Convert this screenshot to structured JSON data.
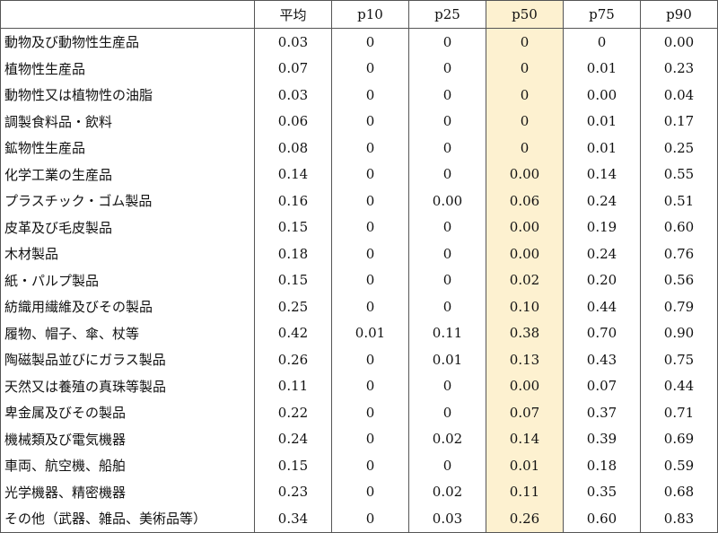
{
  "table": {
    "highlight_color": "#fdf1d0",
    "highlight_column": "p50",
    "headers": [
      "",
      "平均",
      "p10",
      "p25",
      "p50",
      "p75",
      "p90"
    ],
    "rows": [
      {
        "label": "動物及び動物性生産品",
        "values": [
          "0.03",
          "0",
          "0",
          "0",
          "0",
          "0.00"
        ]
      },
      {
        "label": "植物性生産品",
        "values": [
          "0.07",
          "0",
          "0",
          "0",
          "0.01",
          "0.23"
        ]
      },
      {
        "label": "動物性又は植物性の油脂",
        "values": [
          "0.03",
          "0",
          "0",
          "0",
          "0.00",
          "0.04"
        ]
      },
      {
        "label": "調製食料品・飲料",
        "values": [
          "0.06",
          "0",
          "0",
          "0",
          "0.01",
          "0.17"
        ]
      },
      {
        "label": "鉱物性生産品",
        "values": [
          "0.08",
          "0",
          "0",
          "0",
          "0.01",
          "0.25"
        ]
      },
      {
        "label": "化学工業の生産品",
        "values": [
          "0.14",
          "0",
          "0",
          "0.00",
          "0.14",
          "0.55"
        ]
      },
      {
        "label": "プラスチック・ゴム製品",
        "values": [
          "0.16",
          "0",
          "0.00",
          "0.06",
          "0.24",
          "0.51"
        ]
      },
      {
        "label": "皮革及び毛皮製品",
        "values": [
          "0.15",
          "0",
          "0",
          "0.00",
          "0.19",
          "0.60"
        ]
      },
      {
        "label": "木材製品",
        "values": [
          "0.18",
          "0",
          "0",
          "0.00",
          "0.24",
          "0.76"
        ]
      },
      {
        "label": "紙・パルプ製品",
        "values": [
          "0.15",
          "0",
          "0",
          "0.02",
          "0.20",
          "0.56"
        ]
      },
      {
        "label": "紡織用繊維及びその製品",
        "values": [
          "0.25",
          "0",
          "0",
          "0.10",
          "0.44",
          "0.79"
        ]
      },
      {
        "label": "履物、帽子、傘、杖等",
        "values": [
          "0.42",
          "0.01",
          "0.11",
          "0.38",
          "0.70",
          "0.90"
        ]
      },
      {
        "label": "陶磁製品並びにガラス製品",
        "values": [
          "0.26",
          "0",
          "0.01",
          "0.13",
          "0.43",
          "0.75"
        ]
      },
      {
        "label": "天然又は養殖の真珠等製品",
        "values": [
          "0.11",
          "0",
          "0",
          "0.00",
          "0.07",
          "0.44"
        ]
      },
      {
        "label": "卑金属及びその製品",
        "values": [
          "0.22",
          "0",
          "0",
          "0.07",
          "0.37",
          "0.71"
        ]
      },
      {
        "label": "機械類及び電気機器",
        "values": [
          "0.24",
          "0",
          "0.02",
          "0.14",
          "0.39",
          "0.69"
        ]
      },
      {
        "label": "車両、航空機、船舶",
        "values": [
          "0.15",
          "0",
          "0",
          "0.01",
          "0.18",
          "0.59"
        ]
      },
      {
        "label": "光学機器、精密機器",
        "values": [
          "0.23",
          "0",
          "0.02",
          "0.11",
          "0.35",
          "0.68"
        ]
      },
      {
        "label": "その他（武器、雑品、美術品等）",
        "values": [
          "0.34",
          "0",
          "0.03",
          "0.26",
          "0.60",
          "0.83"
        ]
      }
    ]
  }
}
